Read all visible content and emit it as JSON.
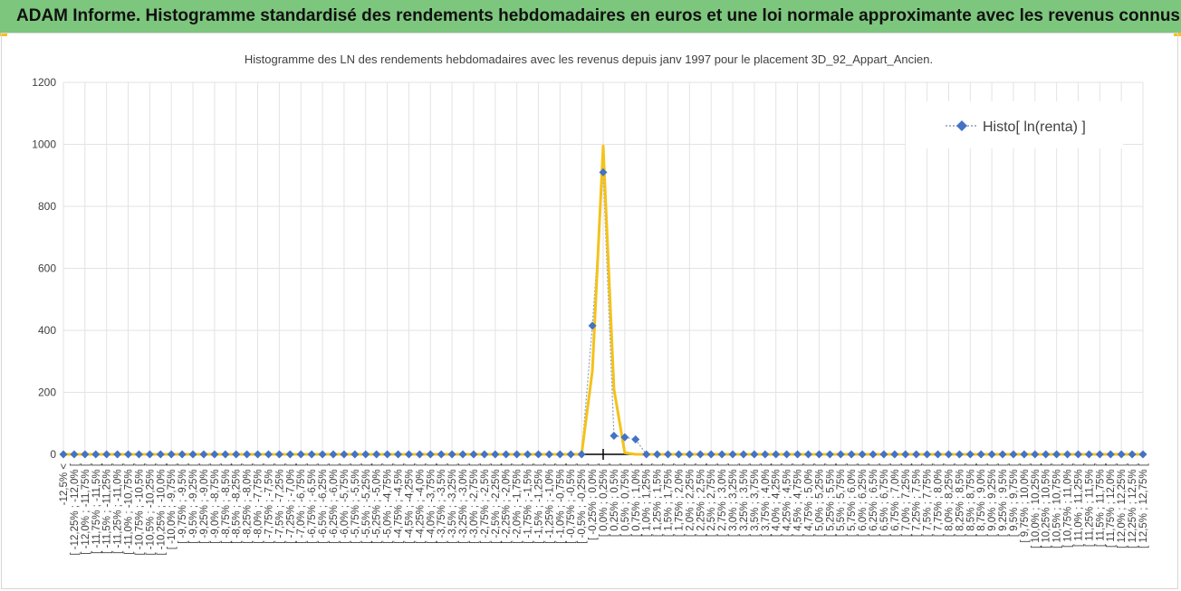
{
  "header": {
    "banner_title": "ADAM Informe. Histogramme standardisé des rendements hebdomadaires en euros et une loi normale approximante avec les revenus connus distribués"
  },
  "colors": {
    "banner": "#7dc67d",
    "corner_accent": "#f4c21a",
    "histo_series": "#4472c4",
    "normal_curve": "#f4c21a",
    "grid": "#e3e3e3",
    "axis": "#000000"
  },
  "chart_data": {
    "type": "line",
    "title": "Histogramme  des LN des rendements hebdomadaires avec les revenus depuis janv 1997 pour le placement 3D_92_Appart_Ancien.",
    "xlabel": "",
    "ylabel": "",
    "ylim": [
      0,
      1200
    ],
    "yticks": [
      0,
      200,
      400,
      600,
      800,
      1000,
      1200
    ],
    "grid": true,
    "legend_position": "top-right",
    "categories": [
      "-12,5% <",
      "[ -12,25% ; -12,0% [",
      "[ -12,0% ; -11,75% [",
      "[ -11,75% ; -11,5% [",
      "[ -11,5% ; -11,25% [",
      "[ -11,25% ; -11,0% [",
      "[ -11,0% ; -10,75% [",
      "[ -10,75% ; -10,5% [",
      "[ -10,5% ; -10,25% [",
      "[ -10,25% ; -10,0% [",
      "[ -10,0% ; -9,75% [",
      "[ -9,75% ; -9,5% [",
      "[ -9,5% ; -9,25% [",
      "[ -9,25% ; -9,0% [",
      "[ -9,0% ; -8,75% [",
      "[ -8,75% ; -8,5% [",
      "[ -8,5% ; -8,25% [",
      "[ -8,25% ; -8,0% [",
      "[ -8,0% ; -7,75% [",
      "[ -7,75% ; -7,5% [",
      "[ -7,5% ; -7,25% [",
      "[ -7,25% ; -7,0% [",
      "[ -7,0% ; -6,75% [",
      "[ -6,75% ; -6,5% [",
      "[ -6,5% ; -6,25% [",
      "[ -6,25% ; -6,0% [",
      "[ -6,0% ; -5,75% [",
      "[ -5,75% ; -5,5% [",
      "[ -5,5% ; -5,25% [",
      "[ -5,25% ; -5,0% [",
      "[ -5,0% ; -4,75% [",
      "[ -4,75% ; -4,5% [",
      "[ -4,5% ; -4,25% [",
      "[ -4,25% ; -4,0% [",
      "[ -4,0% ; -3,75% [",
      "[ -3,75% ; -3,5% [",
      "[ -3,5% ; -3,25% [",
      "[ -3,25% ; -3,0% [",
      "[ -3,0% ; -2,75% [",
      "[ -2,75% ; -2,5% [",
      "[ -2,5% ; -2,25% [",
      "[ -2,25% ; -2,0% [",
      "[ -2,0% ; -1,75% [",
      "[ -1,75% ; -1,5% [",
      "[ -1,5% ; -1,25% [",
      "[ -1,25% ; -1,0% [",
      "[ -1,0% ; -0,75% [",
      "[ -0,75% ; -0,5% [",
      "[ -0,5% ; -0,25% [",
      "[ -0,25% ; 0,0% [",
      "[ 0,0% ; 0,25% [",
      "[ 0,25% ; 0,5% [",
      "[ 0,5% ; 0,75% [",
      "[ 0,75% ; 1,0% [",
      "[ 1,0% ; 1,25% [",
      "[ 1,25% ; 1,5% [",
      "[ 1,5% ; 1,75% [",
      "[ 1,75% ; 2,0% [",
      "[ 2,0% ; 2,25% [",
      "[ 2,25% ; 2,5% [",
      "[ 2,5% ; 2,75% [",
      "[ 2,75% ; 3,0% [",
      "[ 3,0% ; 3,25% [",
      "[ 3,25% ; 3,5% [",
      "[ 3,5% ; 3,75% [",
      "[ 3,75% ; 4,0% [",
      "[ 4,0% ; 4,25% [",
      "[ 4,25% ; 4,5% [",
      "[ 4,5% ; 4,75% [",
      "[ 4,75% ; 5,0% [",
      "[ 5,0% ; 5,25% [",
      "[ 5,25% ; 5,5% [",
      "[ 5,5% ; 5,75% [",
      "[ 5,75% ; 6,0% [",
      "[ 6,0% ; 6,25% [",
      "[ 6,25% ; 6,5% [",
      "[ 6,5% ; 6,75% [",
      "[ 6,75% ; 7,0% [",
      "[ 7,0% ; 7,25% [",
      "[ 7,25% ; 7,5% [",
      "[ 7,5% ; 7,75% [",
      "[ 7,75% ; 8,0% [",
      "[ 8,0% ; 8,25% [",
      "[ 8,25% ; 8,5% [",
      "[ 8,5% ; 8,75% [",
      "[ 8,75% ; 9,0% [",
      "[ 9,0% ; 9,25% [",
      "[ 9,25% ; 9,5% [",
      "[ 9,5% ; 9,75% [",
      "[ 9,75% ; 10,0% [",
      "[ 10,0% ; 10,25% [",
      "[ 10,25% ; 10,5% [",
      "[ 10,5% ; 10,75% [",
      "[ 10,75% ; 11,0% [",
      "[ 11,0% ; 11,25% [",
      "[ 11,25% ; 11,5% [",
      "[ 11,5% ; 11,75% [",
      "[ 11,75% ; 12,0% [",
      "[ 12,0% ; 12,25% [",
      "[ 12,25% ; 12,5% [",
      "[ 12,5% ; 12,75% ["
    ],
    "series": [
      {
        "name": "Histo[ ln(renta) ]",
        "marker": "diamond",
        "line_style": "dotted",
        "values": [
          0,
          0,
          0,
          0,
          0,
          0,
          0,
          0,
          0,
          0,
          0,
          0,
          0,
          0,
          0,
          0,
          0,
          0,
          0,
          0,
          0,
          0,
          0,
          0,
          0,
          0,
          0,
          0,
          0,
          0,
          0,
          0,
          0,
          0,
          0,
          0,
          0,
          0,
          0,
          0,
          0,
          0,
          0,
          0,
          0,
          0,
          0,
          0,
          0,
          415,
          910,
          60,
          55,
          48,
          0,
          0,
          0,
          0,
          0,
          0,
          0,
          0,
          0,
          0,
          0,
          0,
          0,
          0,
          0,
          0,
          0,
          0,
          0,
          0,
          0,
          0,
          0,
          0,
          0,
          0,
          0,
          0,
          0,
          0,
          0,
          0,
          0,
          0,
          0,
          0,
          0,
          0,
          0,
          0,
          0,
          0,
          0,
          0,
          0,
          0,
          0
        ]
      },
      {
        "line_style": "solid",
        "values": [
          0,
          0,
          0,
          0,
          0,
          0,
          0,
          0,
          0,
          0,
          0,
          0,
          0,
          0,
          0,
          0,
          0,
          0,
          0,
          0,
          0,
          0,
          0,
          0,
          0,
          0,
          0,
          0,
          0,
          0,
          0,
          0,
          0,
          0,
          0,
          0,
          0,
          0,
          0,
          0,
          0,
          0,
          0,
          0,
          0,
          0,
          0,
          0,
          0,
          270,
          995,
          210,
          5,
          0,
          0,
          0,
          0,
          0,
          0,
          0,
          0,
          0,
          0,
          0,
          0,
          0,
          0,
          0,
          0,
          0,
          0,
          0,
          0,
          0,
          0,
          0,
          0,
          0,
          0,
          0,
          0,
          0,
          0,
          0,
          0,
          0,
          0,
          0,
          0,
          0,
          0,
          0,
          0,
          0,
          0,
          0,
          0,
          0,
          0,
          0,
          0
        ]
      }
    ]
  }
}
